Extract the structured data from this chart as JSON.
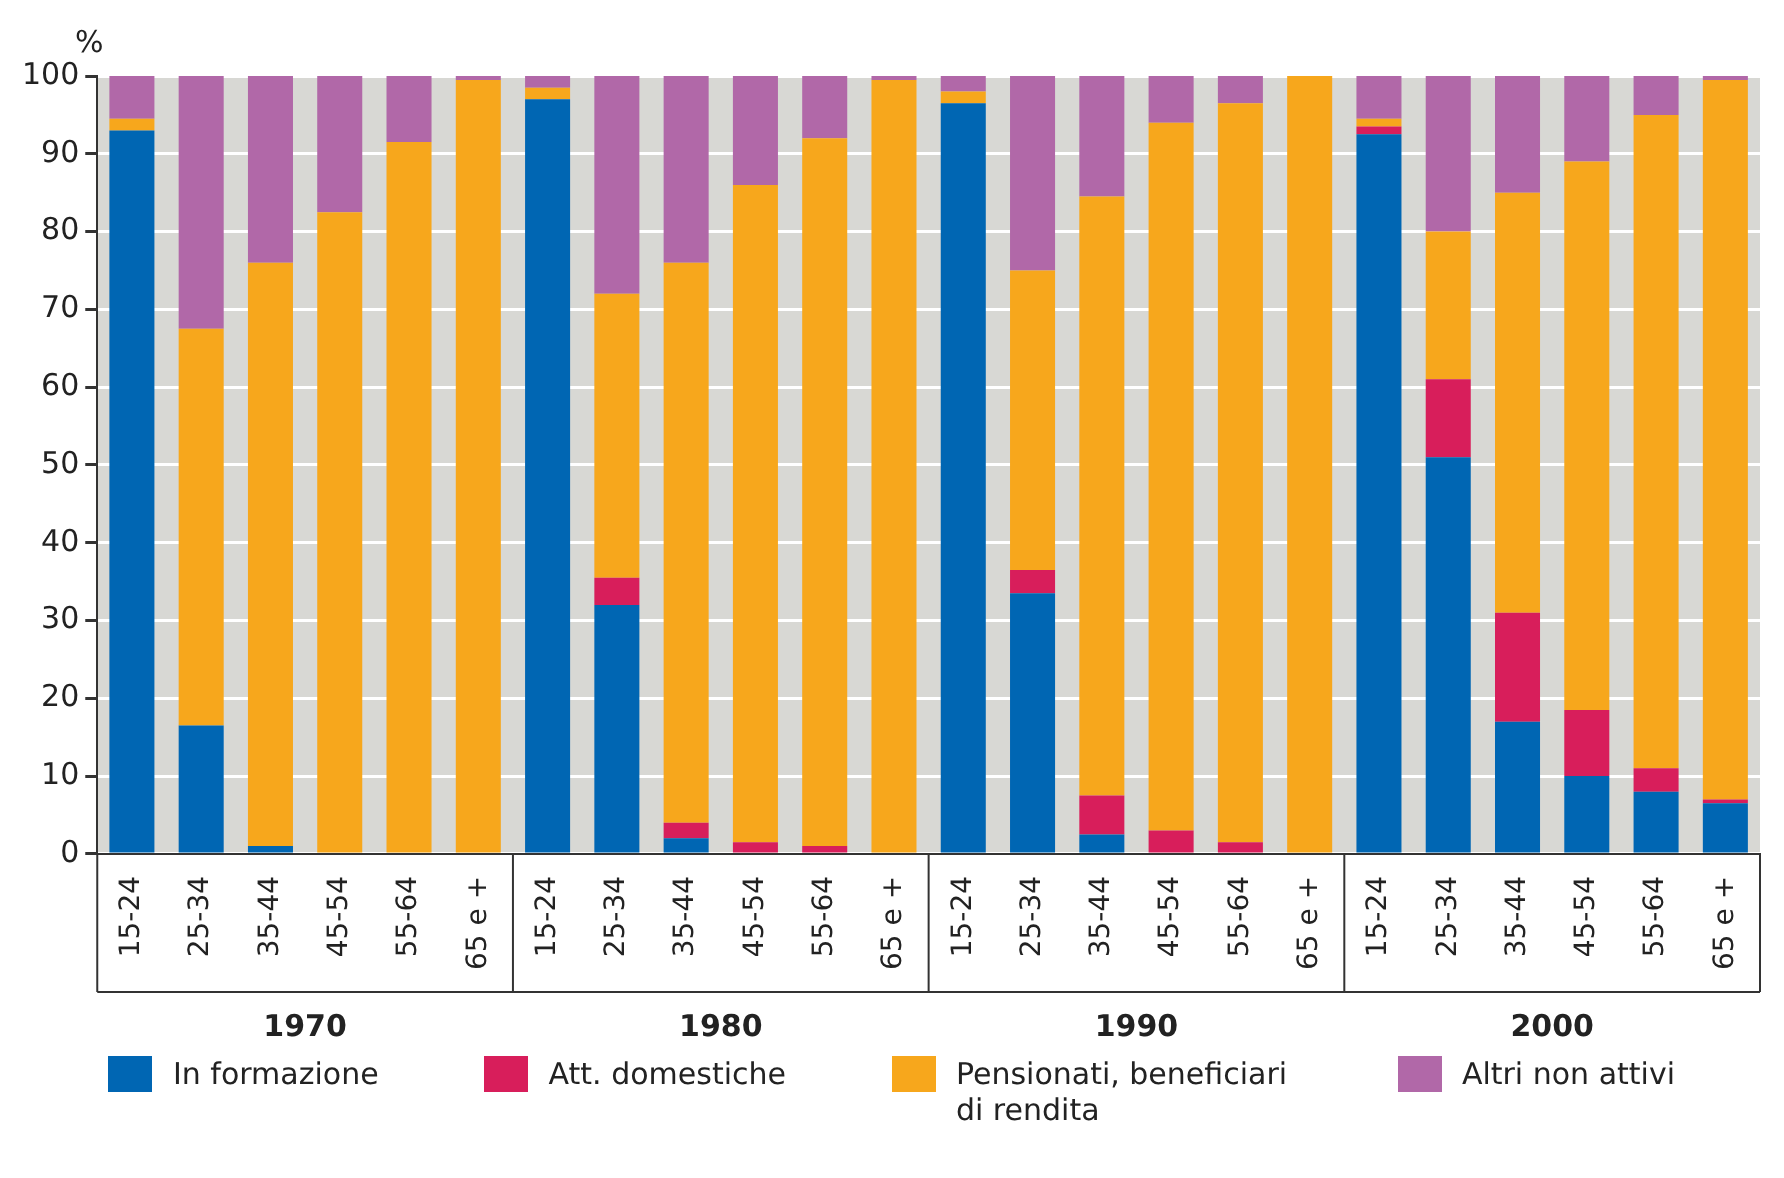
{
  "chart_data": {
    "type": "bar",
    "stacked": true,
    "ylabel": "%",
    "categories": [
      "15-24",
      "25-34",
      "35-44",
      "45-54",
      "55-64",
      "65 e +",
      "15-24",
      "25-34",
      "35-44",
      "45-54",
      "55-64",
      "65 e +",
      "15-24",
      "25-34",
      "35-44",
      "45-54",
      "55-64",
      "65 e +",
      "15-24",
      "25-34",
      "35-44",
      "45-54",
      "55-64",
      "65 e +"
    ],
    "annotations": [
      "1970",
      "1980",
      "1990",
      "2000"
    ],
    "series": [
      {
        "name": "In formazione",
        "color": "#0066b3",
        "values": [
          93,
          16.5,
          1,
          0,
          0,
          0,
          97,
          32,
          2,
          0,
          0,
          0,
          96.5,
          33.5,
          2.5,
          0,
          0,
          0,
          92.5,
          51,
          17,
          10,
          8,
          6.5
        ]
      },
      {
        "name": "Att. domestiche",
        "color": "#d81e5b",
        "values": [
          0,
          0,
          0,
          0,
          0,
          0,
          0,
          3.5,
          2,
          1.5,
          1,
          0,
          0,
          3,
          5,
          3,
          1.5,
          0,
          1,
          10,
          14,
          8.5,
          3,
          0.5
        ]
      },
      {
        "name": "Pensionati, beneficiari di rendita",
        "color": "#f7a71c",
        "values": [
          1.5,
          51,
          75,
          82.5,
          91.5,
          99.5,
          1.5,
          36.5,
          72,
          84.5,
          91,
          99.5,
          1.5,
          38.5,
          77,
          91,
          95,
          100,
          1,
          19,
          54,
          70.5,
          84,
          92.5
        ]
      },
      {
        "name": "Altri non attivi",
        "color": "#b168a8",
        "values": [
          5.5,
          32.5,
          24,
          17.5,
          8.5,
          0.5,
          1.5,
          28,
          24,
          14,
          8,
          0.5,
          2,
          25,
          15.5,
          6,
          3.5,
          0,
          5.5,
          20,
          15,
          11,
          5,
          0.5
        ]
      }
    ],
    "ylim": [
      0,
      100
    ],
    "yticks": [
      0,
      10,
      20,
      30,
      40,
      50,
      60,
      70,
      80,
      90,
      100
    ],
    "grid": "y",
    "legend": "bottom"
  }
}
